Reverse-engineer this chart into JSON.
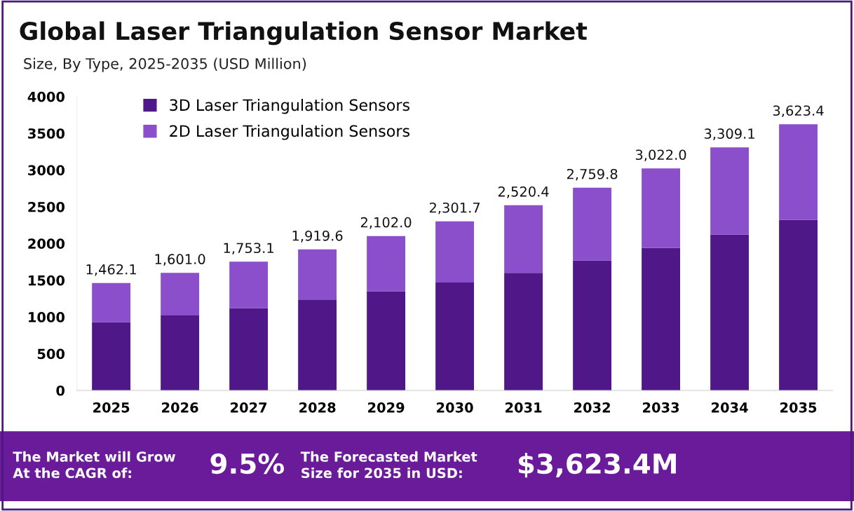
{
  "chart_data": {
    "type": "bar",
    "title": "Global Laser Triangulation Sensor Market",
    "subtitle": "Size, By Type, 2025-2035 (USD Million)",
    "categories": [
      "2025",
      "2026",
      "2027",
      "2028",
      "2029",
      "2030",
      "2031",
      "2032",
      "2033",
      "2034",
      "2035"
    ],
    "series": [
      {
        "name": "3D Laser Triangulation Sensors",
        "color": "#4f1787",
        "values": [
          930,
          1020,
          1120,
          1230,
          1350,
          1470,
          1600,
          1770,
          1940,
          2120,
          2320
        ]
      },
      {
        "name": "2D Laser Triangulation Sensors",
        "color": "#8b4fcb",
        "values": [
          532.1,
          581.0,
          633.1,
          689.6,
          752.0,
          831.7,
          920.4,
          989.8,
          1082.0,
          1189.1,
          1303.4
        ]
      }
    ],
    "stacked": true,
    "totals": [
      "1,462.1",
      "1,601.0",
      "1,753.1",
      "1,919.6",
      "2,102.0",
      "2,301.7",
      "2,520.4",
      "2,759.8",
      "3,022.0",
      "3,309.1",
      "3,623.4"
    ],
    "ylim": [
      0,
      4000
    ],
    "yticks": [
      0,
      500,
      1000,
      1500,
      2000,
      2500,
      3000,
      3500,
      4000
    ],
    "grid": false,
    "legend": "top left",
    "annotations": [
      "The Market will Grow\nAt the CAGR of:",
      "9.5%",
      "The Forecasted Market\nSize for 2035 in USD:",
      "$3,623.4M"
    ]
  }
}
